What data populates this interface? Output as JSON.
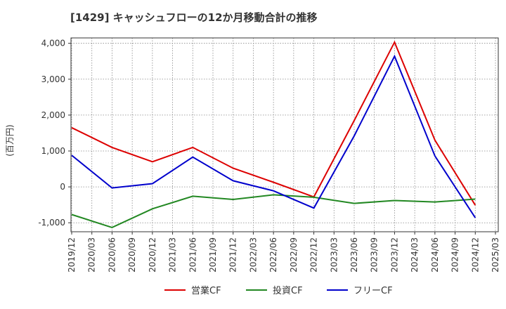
{
  "chart_data": {
    "type": "line",
    "title": "[1429]  キャッシュフローの12か月移動合計の推移",
    "ylabel": "(百万円)",
    "xlabel": "",
    "ylim": [
      -1250,
      4150
    ],
    "yticks": [
      4000,
      3000,
      2000,
      1000,
      0,
      -1000
    ],
    "ytick_labels": [
      "4,000",
      "3,000",
      "2,000",
      "1,000",
      "0",
      "-1,000"
    ],
    "x_ticks": [
      "2019/12",
      "2020/03",
      "2020/06",
      "2020/09",
      "2020/12",
      "2021/03",
      "2021/06",
      "2021/09",
      "2021/12",
      "2022/03",
      "2022/06",
      "2022/09",
      "2022/12",
      "2023/03",
      "2023/06",
      "2023/09",
      "2023/12",
      "2024/03",
      "2024/06",
      "2024/09",
      "2024/12",
      "2025/03"
    ],
    "grid": true,
    "legend_position": "bottom",
    "series": [
      {
        "name": "営業CF",
        "color": "#dd0000",
        "x": [
          "2019/12",
          "2020/06",
          "2020/12",
          "2021/06",
          "2021/12",
          "2022/06",
          "2022/12",
          "2023/06",
          "2023/12",
          "2024/06",
          "2024/12"
        ],
        "values": [
          1650,
          1100,
          700,
          1100,
          520,
          130,
          -280,
          1850,
          4030,
          1300,
          -510
        ]
      },
      {
        "name": "投資CF",
        "color": "#228822",
        "x": [
          "2019/12",
          "2020/06",
          "2020/12",
          "2021/06",
          "2021/12",
          "2022/06",
          "2022/12",
          "2023/06",
          "2023/12",
          "2024/06",
          "2024/12"
        ],
        "values": [
          -770,
          -1130,
          -610,
          -260,
          -350,
          -220,
          -290,
          -460,
          -380,
          -420,
          -340
        ]
      },
      {
        "name": "フリーCF",
        "color": "#0000cc",
        "x": [
          "2019/12",
          "2020/06",
          "2020/12",
          "2021/06",
          "2021/12",
          "2022/06",
          "2022/12",
          "2023/06",
          "2023/12",
          "2024/06",
          "2024/12"
        ],
        "values": [
          880,
          -30,
          90,
          830,
          170,
          -110,
          -590,
          1420,
          3640,
          860,
          -860
        ]
      }
    ]
  }
}
